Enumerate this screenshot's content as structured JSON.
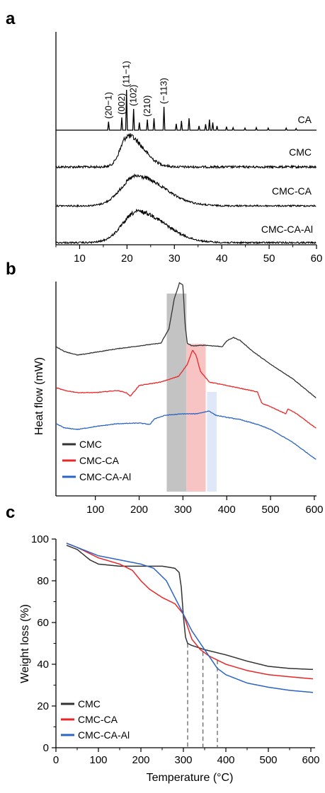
{
  "figure": {
    "panels": [
      "a",
      "b",
      "c"
    ]
  },
  "colors": {
    "axis": "#000000",
    "CMC": "#333333",
    "CMC-CA": "#e8272a",
    "CMC-CA-Al": "#2a64c4",
    "band_gray": "#bdbdbd",
    "band_red": "#f6bcbc",
    "band_blue": "#dbe5f7",
    "dash": "#666666"
  },
  "chart_data": [
    {
      "panel": "a",
      "type": "line",
      "title": "",
      "xlabel": "",
      "ylabel": "",
      "xlim": [
        5,
        60
      ],
      "xticks": [
        10,
        20,
        30,
        40,
        50,
        60
      ],
      "series": [
        {
          "name": "CA",
          "kind": "sticks",
          "peaks": [
            {
              "x": 16.1,
              "h": 0.2
            },
            {
              "x": 18.9,
              "h": 0.3
            },
            {
              "x": 19.9,
              "h": 0.95
            },
            {
              "x": 21.4,
              "h": 0.5
            },
            {
              "x": 22.6,
              "h": 0.18
            },
            {
              "x": 24.3,
              "h": 0.25
            },
            {
              "x": 25.7,
              "h": 0.28
            },
            {
              "x": 27.8,
              "h": 0.55
            },
            {
              "x": 30.4,
              "h": 0.15
            },
            {
              "x": 31.5,
              "h": 0.22
            },
            {
              "x": 33.1,
              "h": 0.28
            },
            {
              "x": 35.2,
              "h": 0.1
            },
            {
              "x": 36.6,
              "h": 0.14
            },
            {
              "x": 37.4,
              "h": 0.25
            },
            {
              "x": 38.1,
              "h": 0.18
            },
            {
              "x": 39.0,
              "h": 0.1
            },
            {
              "x": 41.0,
              "h": 0.08
            },
            {
              "x": 42.4,
              "h": 0.06
            },
            {
              "x": 44.9,
              "h": 0.05
            },
            {
              "x": 47.3,
              "h": 0.06
            },
            {
              "x": 49.8,
              "h": 0.05
            },
            {
              "x": 53.6,
              "h": 0.05
            },
            {
              "x": 55.7,
              "h": 0.04
            }
          ]
        },
        {
          "name": "CMC",
          "kind": "hump",
          "center": 20.2,
          "width_left": 2.2,
          "width_right": 4.5,
          "height": 1.0
        },
        {
          "name": "CMC-CA",
          "kind": "hump",
          "center": 22.0,
          "width_left": 4.5,
          "width_right": 8.0,
          "height": 1.0
        },
        {
          "name": "CMC-CA-Al",
          "kind": "hump",
          "center": 22.3,
          "width_left": 4.5,
          "width_right": 8.0,
          "height": 1.0
        }
      ],
      "peak_labels": [
        {
          "text": "(20−1)",
          "x": 16.1
        },
        {
          "text": "(002)",
          "x": 18.9
        },
        {
          "text": "(11−1)",
          "x": 19.9
        },
        {
          "text": "(102)",
          "x": 21.4
        },
        {
          "text": "(210)",
          "x": 24.3
        },
        {
          "text": "(−113)",
          "x": 27.8
        }
      ]
    },
    {
      "panel": "b",
      "type": "line",
      "title": "",
      "xlabel": "",
      "ylabel": "Heat flow (mW)",
      "xlim": [
        10,
        605
      ],
      "xticks": [
        100,
        200,
        300,
        400,
        500,
        600
      ],
      "highlight_bands": [
        {
          "x_from": 263,
          "x_to": 308,
          "color": "gray"
        },
        {
          "x_from": 308,
          "x_to": 352,
          "color": "red"
        },
        {
          "x_from": 355,
          "x_to": 377,
          "color": "blue"
        }
      ],
      "series": [
        {
          "name": "CMC",
          "x": [
            10,
            30,
            60,
            100,
            150,
            200,
            250,
            268,
            280,
            292,
            300,
            305,
            310,
            320,
            350,
            390,
            400,
            415,
            430,
            460,
            500,
            550,
            605
          ],
          "y": [
            0.05,
            -0.02,
            -0.07,
            -0.03,
            0.02,
            0.06,
            0.1,
            0.3,
            0.72,
            0.95,
            0.92,
            0.35,
            0.1,
            0.06,
            0.07,
            0.05,
            0.13,
            0.18,
            0.14,
            -0.02,
            -0.2,
            -0.4,
            -0.68
          ]
        },
        {
          "name": "CMC-CA",
          "x": [
            10,
            30,
            60,
            100,
            150,
            170,
            180,
            200,
            250,
            290,
            310,
            322,
            330,
            340,
            360,
            400,
            440,
            470,
            480,
            500,
            535,
            540,
            560,
            605
          ],
          "y": [
            0.02,
            -0.02,
            -0.05,
            -0.05,
            -0.02,
            -0.05,
            -0.1,
            0.05,
            0.1,
            0.18,
            0.35,
            0.55,
            0.48,
            0.25,
            0.1,
            0.05,
            0.0,
            -0.04,
            -0.2,
            -0.25,
            -0.35,
            -0.28,
            -0.35,
            -0.56
          ]
        },
        {
          "name": "CMC-CA-Al",
          "x": [
            10,
            30,
            60,
            100,
            150,
            200,
            225,
            235,
            260,
            300,
            330,
            360,
            375,
            400,
            430,
            470,
            500,
            550,
            605
          ],
          "y": [
            0.06,
            0.0,
            -0.02,
            0.02,
            0.06,
            0.07,
            0.05,
            0.13,
            0.18,
            0.2,
            0.2,
            0.24,
            0.18,
            0.15,
            0.12,
            0.05,
            -0.02,
            -0.2,
            -0.45
          ]
        }
      ],
      "legend": {
        "position": "bottom-left",
        "entries": [
          "CMC",
          "CMC-CA",
          "CMC-CA-Al"
        ]
      }
    },
    {
      "panel": "c",
      "type": "line",
      "title": "",
      "xlabel": "Temperature (°C)",
      "ylabel": "Weight loss (%)",
      "xlim": [
        0,
        610
      ],
      "ylim": [
        0,
        100
      ],
      "xticks": [
        0,
        100,
        200,
        300,
        400,
        500,
        600
      ],
      "yticks": [
        0,
        20,
        40,
        60,
        80,
        100
      ],
      "dashed_markers": [
        {
          "x": 310,
          "y_top": 50
        },
        {
          "x": 346,
          "y_top": 46
        },
        {
          "x": 380,
          "y_top": 42
        }
      ],
      "series": [
        {
          "name": "CMC",
          "x": [
            25,
            50,
            80,
            100,
            150,
            200,
            250,
            280,
            290,
            295,
            300,
            305,
            310,
            320,
            350,
            400,
            450,
            500,
            550,
            605
          ],
          "y": [
            97,
            95,
            90,
            88,
            87,
            87,
            87,
            86,
            84,
            77,
            63,
            53,
            50,
            49,
            47,
            44.5,
            41.5,
            39,
            38,
            37.5
          ]
        },
        {
          "name": "CMC-CA",
          "x": [
            25,
            50,
            100,
            150,
            180,
            200,
            220,
            250,
            280,
            300,
            310,
            320,
            340,
            360,
            400,
            450,
            500,
            550,
            605
          ],
          "y": [
            98,
            96,
            91,
            88,
            85,
            80,
            76,
            72,
            69,
            64,
            58,
            52,
            47,
            44,
            40,
            37,
            35,
            34,
            33
          ]
        },
        {
          "name": "CMC-CA-Al",
          "x": [
            25,
            50,
            100,
            150,
            200,
            230,
            260,
            280,
            300,
            320,
            340,
            360,
            380,
            400,
            450,
            500,
            550,
            605
          ],
          "y": [
            98,
            96,
            92,
            90,
            88,
            86,
            80,
            72,
            64,
            56,
            50,
            44,
            38,
            35,
            31,
            29,
            27.5,
            26.5
          ]
        }
      ],
      "legend": {
        "position": "bottom-left",
        "entries": [
          "CMC",
          "CMC-CA",
          "CMC-CA-Al"
        ]
      }
    }
  ]
}
